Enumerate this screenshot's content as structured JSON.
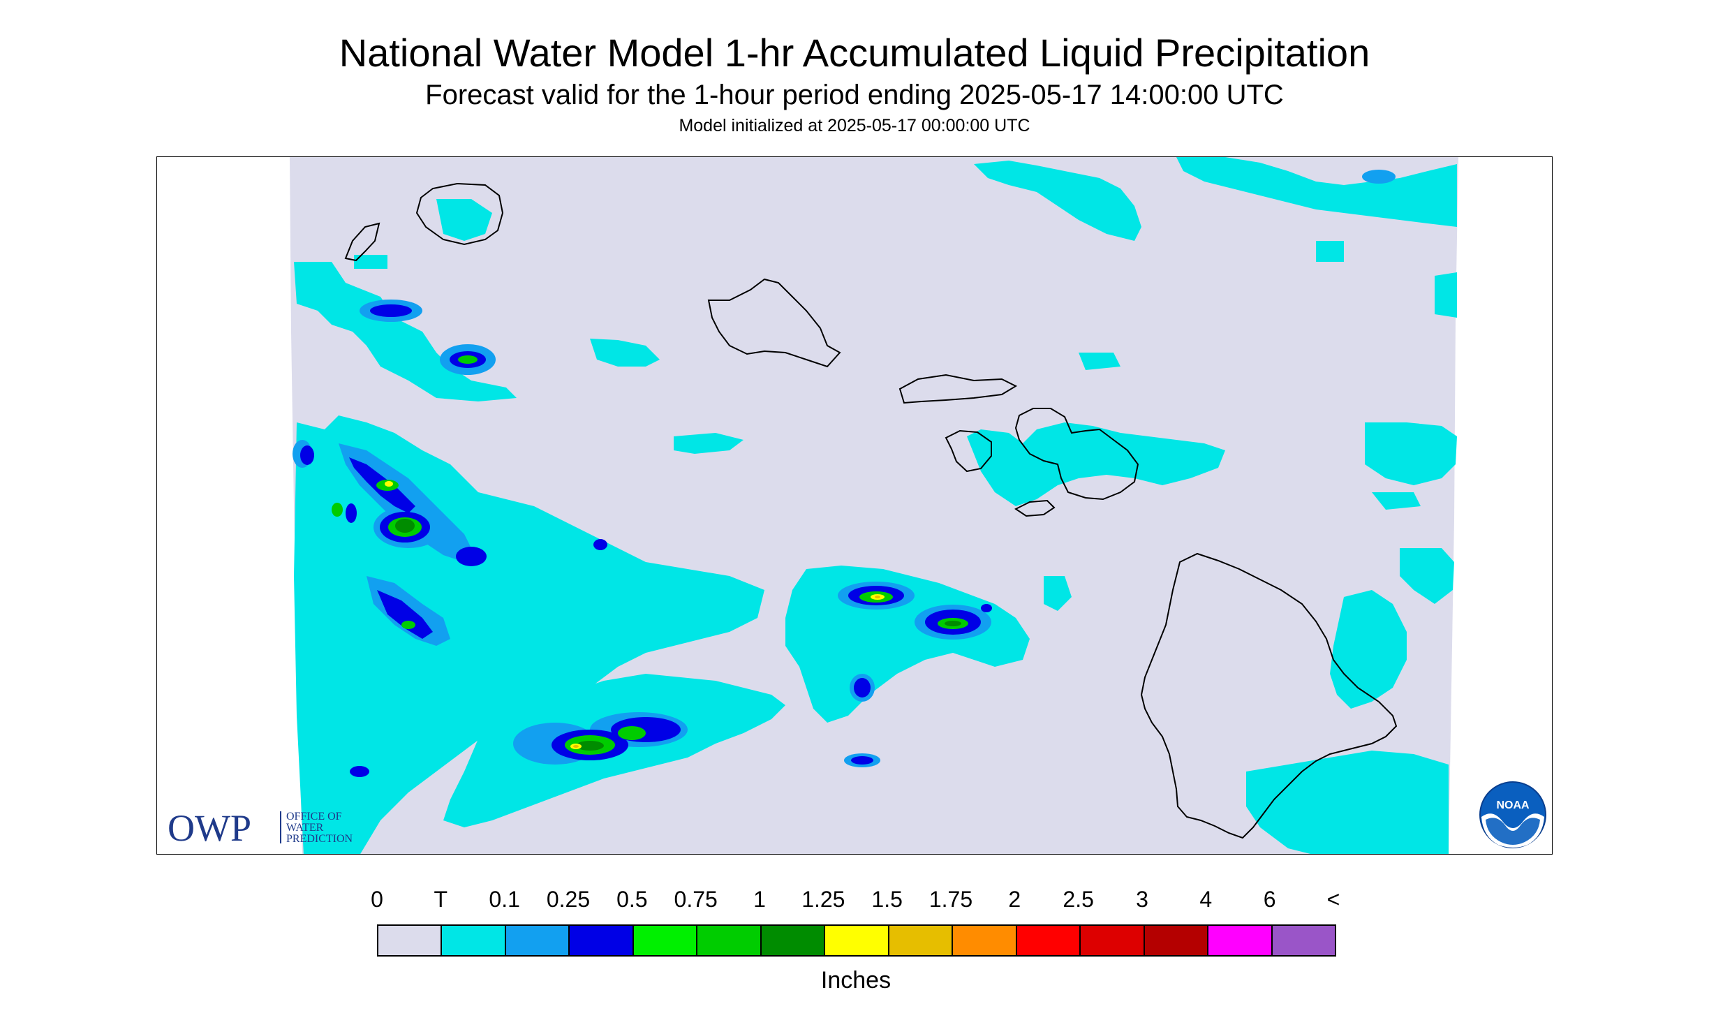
{
  "header": {
    "title": "National Water Model 1-hr Accumulated Liquid Precipitation",
    "subtitle": "Forecast valid for the 1-hour period ending 2025-05-17 14:00:00 UTC",
    "init": "Model initialized at 2025-05-17 00:00:00 UTC"
  },
  "map": {
    "region": "Hawaiian Islands",
    "background_color": "#dcdcec",
    "outline_color": "#000000",
    "islands": [
      "Kauai",
      "Niihau",
      "Oahu",
      "Molokai",
      "Lanai",
      "Maui",
      "Kahoolawe",
      "Hawaii"
    ]
  },
  "logos": {
    "owp": {
      "mark": "OWP",
      "text_line1": "OFFICE OF",
      "text_line2": "WATER",
      "text_line3": "PREDICTION",
      "color": "#1f3a8a"
    },
    "noaa": {
      "mark": "NOAA",
      "color": "#0a5fbf"
    }
  },
  "legend": {
    "labels": [
      "0",
      "T",
      "0.1",
      "0.25",
      "0.5",
      "0.75",
      "1",
      "1.25",
      "1.5",
      "1.75",
      "2",
      "2.5",
      "3",
      "4",
      "6",
      "<"
    ],
    "colors": [
      "#dcdcec",
      "#00e6e6",
      "#12a0f0",
      "#0000e6",
      "#00f000",
      "#00cc00",
      "#008c00",
      "#ffff00",
      "#e6be00",
      "#ff8c00",
      "#ff0000",
      "#dd0000",
      "#b40000",
      "#ff00ff",
      "#9a55c8"
    ],
    "units": "Inches"
  }
}
